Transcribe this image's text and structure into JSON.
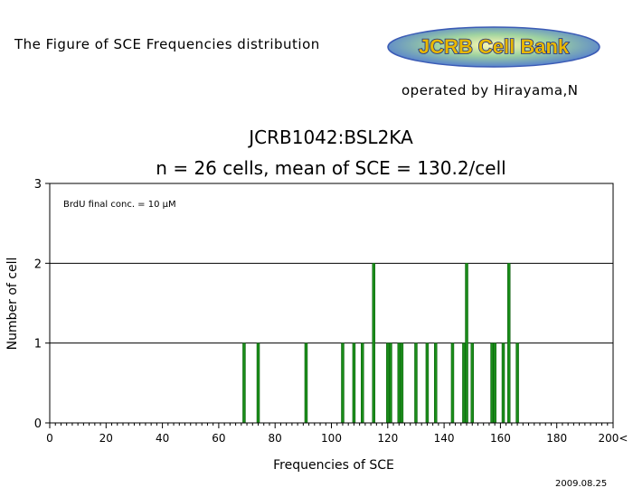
{
  "header": {
    "title": "The Figure of SCE Frequencies distribution",
    "logo_text": "JCRB Cell Bank",
    "operated_by": "operated by Hirayama,N"
  },
  "date": "2009.08.25",
  "chart_data": {
    "type": "bar",
    "title": "JCRB1042:BSL2KA",
    "subtitle": "n = 26 cells, mean of SCE = 130.2/cell",
    "annotation": "BrdU final conc. = 10 µM",
    "xlabel": "Frequencies of  SCE",
    "ylabel": "Number of cell",
    "xlim": [
      0,
      200
    ],
    "ylim": [
      0,
      3
    ],
    "x_tick_labels": [
      "0",
      "20",
      "40",
      "60",
      "80",
      "100",
      "120",
      "140",
      "160",
      "180",
      "200<"
    ],
    "y_tick_labels": [
      "0",
      "1",
      "2",
      "3"
    ],
    "grid": "horizontal",
    "bar_color": "#1a8c1a",
    "x": [
      69,
      74,
      91,
      104,
      108,
      111,
      115,
      120,
      121,
      124,
      125,
      130,
      134,
      137,
      143,
      147,
      148,
      150,
      157,
      158,
      161,
      163,
      166
    ],
    "values": [
      1,
      1,
      1,
      1,
      1,
      1,
      2,
      1,
      1,
      1,
      1,
      1,
      1,
      1,
      1,
      1,
      2,
      1,
      1,
      1,
      1,
      2,
      1
    ]
  }
}
